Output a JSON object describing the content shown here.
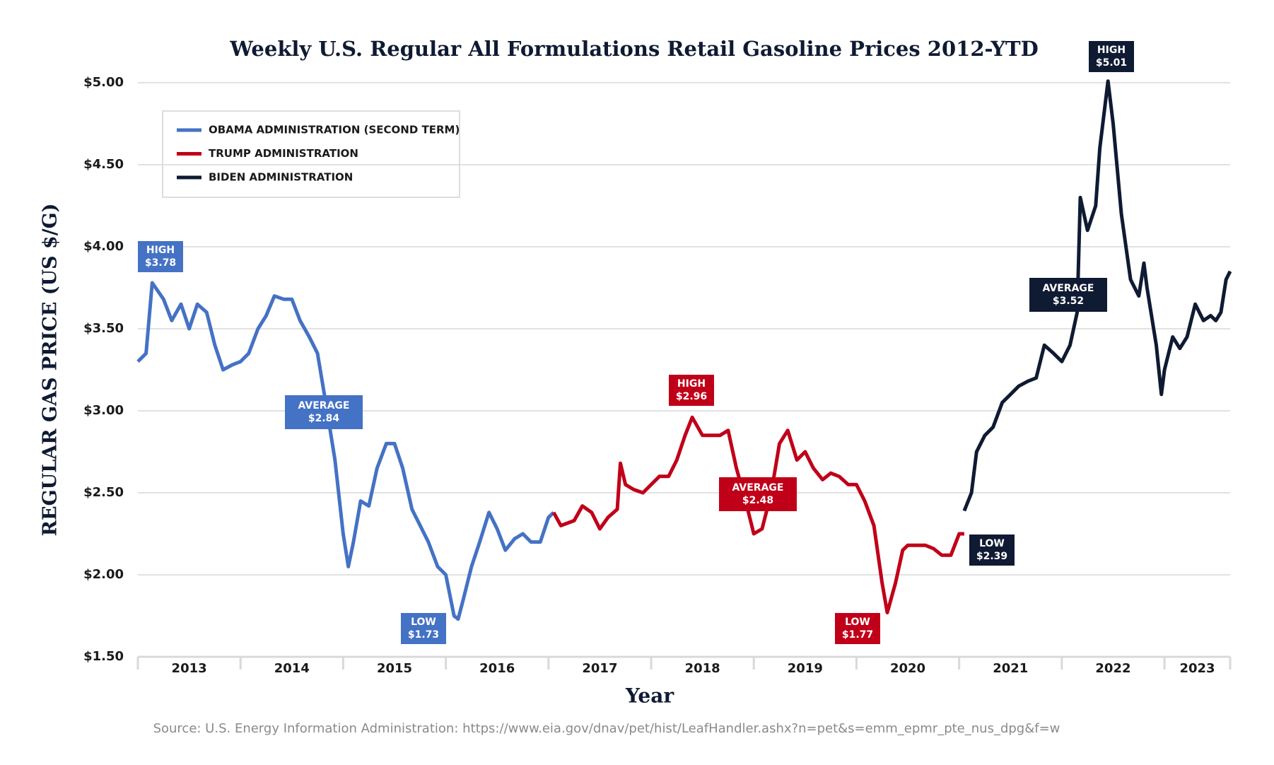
{
  "chart_data": {
    "type": "line",
    "title": "Weekly U.S. Regular All Formulations Retail Gasoline Prices 2012-YTD",
    "x_label": "Year",
    "y_label": "REGULAR GAS PRICE (US $/G)",
    "source": "Source: U.S. Energy Information Administration: https://www.eia.gov/dnav/pet/hist/LeafHandler.ashx?n=pet&s=emm_epmr_pte_nus_dpg&f=w",
    "xlim": [
      2013,
      2023.64
    ],
    "xticks": [
      2013,
      2014,
      2015,
      2016,
      2017,
      2018,
      2019,
      2020,
      2021,
      2022,
      2023
    ],
    "ylim": [
      1.5,
      5.0
    ],
    "yticks": [
      {
        "value": 1.5,
        "label": "$1.50"
      },
      {
        "value": 2.0,
        "label": "$2.00"
      },
      {
        "value": 2.5,
        "label": "$2.50"
      },
      {
        "value": 3.0,
        "label": "$3.00"
      },
      {
        "value": 3.5,
        "label": "$3.50"
      },
      {
        "value": 4.0,
        "label": "$4.00"
      },
      {
        "value": 4.5,
        "label": "$4.50"
      },
      {
        "value": 5.0,
        "label": "$5.00"
      }
    ],
    "grid": true,
    "legend": "upper left",
    "series": [
      {
        "name": "OBAMA ADMINISTRATION (SECOND TERM)",
        "color": "#4472c4",
        "x": [
          2013.0,
          2013.08,
          2013.14,
          2013.25,
          2013.33,
          2013.42,
          2013.5,
          2013.58,
          2013.67,
          2013.75,
          2013.83,
          2013.92,
          2014.0,
          2014.08,
          2014.17,
          2014.25,
          2014.33,
          2014.42,
          2014.5,
          2014.58,
          2014.67,
          2014.75,
          2014.83,
          2014.92,
          2015.0,
          2015.05,
          2015.1,
          2015.17,
          2015.25,
          2015.33,
          2015.42,
          2015.5,
          2015.58,
          2015.67,
          2015.75,
          2015.83,
          2015.92,
          2016.0,
          2016.08,
          2016.12,
          2016.17,
          2016.25,
          2016.33,
          2016.42,
          2016.5,
          2016.58,
          2016.67,
          2016.75,
          2016.83,
          2016.92,
          2017.0,
          2017.05
        ],
        "values": [
          3.3,
          3.35,
          3.78,
          3.68,
          3.55,
          3.65,
          3.5,
          3.65,
          3.6,
          3.4,
          3.25,
          3.28,
          3.3,
          3.35,
          3.5,
          3.58,
          3.7,
          3.68,
          3.68,
          3.55,
          3.45,
          3.35,
          3.05,
          2.7,
          2.25,
          2.05,
          2.2,
          2.45,
          2.42,
          2.65,
          2.8,
          2.8,
          2.65,
          2.4,
          2.3,
          2.2,
          2.05,
          2.0,
          1.75,
          1.73,
          1.85,
          2.05,
          2.2,
          2.38,
          2.28,
          2.15,
          2.22,
          2.25,
          2.2,
          2.2,
          2.35,
          2.38
        ]
      },
      {
        "name": "TRUMP ADMINISTRATION",
        "color": "#c00018",
        "x": [
          2017.05,
          2017.12,
          2017.25,
          2017.33,
          2017.42,
          2017.5,
          2017.58,
          2017.67,
          2017.7,
          2017.75,
          2017.83,
          2017.92,
          2018.0,
          2018.08,
          2018.17,
          2018.25,
          2018.33,
          2018.4,
          2018.5,
          2018.58,
          2018.67,
          2018.75,
          2018.83,
          2018.92,
          2019.0,
          2019.08,
          2019.17,
          2019.25,
          2019.33,
          2019.42,
          2019.5,
          2019.58,
          2019.67,
          2019.75,
          2019.83,
          2019.92,
          2020.0,
          2020.08,
          2020.17,
          2020.25,
          2020.3,
          2020.38,
          2020.45,
          2020.5,
          2020.58,
          2020.67,
          2020.75,
          2020.83,
          2020.92,
          2021.0,
          2021.05
        ],
        "values": [
          2.38,
          2.3,
          2.33,
          2.42,
          2.38,
          2.28,
          2.35,
          2.4,
          2.68,
          2.55,
          2.52,
          2.5,
          2.55,
          2.6,
          2.6,
          2.7,
          2.85,
          2.96,
          2.85,
          2.85,
          2.85,
          2.88,
          2.65,
          2.45,
          2.25,
          2.28,
          2.5,
          2.8,
          2.88,
          2.7,
          2.75,
          2.65,
          2.58,
          2.62,
          2.6,
          2.55,
          2.55,
          2.45,
          2.3,
          1.95,
          1.77,
          1.95,
          2.15,
          2.18,
          2.18,
          2.18,
          2.16,
          2.12,
          2.12,
          2.25,
          2.25
        ]
      },
      {
        "name": "BIDEN ADMINISTRATION",
        "color": "#0f1a33",
        "x": [
          2021.05,
          2021.12,
          2021.17,
          2021.25,
          2021.33,
          2021.42,
          2021.5,
          2021.58,
          2021.67,
          2021.75,
          2021.83,
          2021.92,
          2022.0,
          2022.08,
          2022.15,
          2022.18,
          2022.25,
          2022.33,
          2022.37,
          2022.45,
          2022.5,
          2022.58,
          2022.67,
          2022.75,
          2022.8,
          2022.83,
          2022.92,
          2022.97,
          2023.0,
          2023.08,
          2023.15,
          2023.22,
          2023.3,
          2023.38,
          2023.45,
          2023.5,
          2023.55,
          2023.6,
          2023.64
        ],
        "values": [
          2.39,
          2.5,
          2.75,
          2.85,
          2.9,
          3.05,
          3.1,
          3.15,
          3.18,
          3.2,
          3.4,
          3.35,
          3.3,
          3.4,
          3.6,
          4.3,
          4.1,
          4.25,
          4.6,
          5.01,
          4.75,
          4.2,
          3.8,
          3.7,
          3.9,
          3.75,
          3.4,
          3.1,
          3.25,
          3.45,
          3.38,
          3.45,
          3.65,
          3.55,
          3.58,
          3.55,
          3.6,
          3.8,
          3.85
        ]
      }
    ],
    "annotations": [
      {
        "series": 0,
        "label": "HIGH",
        "value": 3.78,
        "value_label": "$3.78"
      },
      {
        "series": 0,
        "label": "AVERAGE",
        "value": 2.84,
        "value_label": "$2.84"
      },
      {
        "series": 0,
        "label": "LOW",
        "value": 1.73,
        "value_label": "$1.73"
      },
      {
        "series": 1,
        "label": "HIGH",
        "value": 2.96,
        "value_label": "$2.96"
      },
      {
        "series": 1,
        "label": "AVERAGE",
        "value": 2.48,
        "value_label": "$2.48"
      },
      {
        "series": 1,
        "label": "LOW",
        "value": 1.77,
        "value_label": "$1.77"
      },
      {
        "series": 2,
        "label": "HIGH",
        "value": 5.01,
        "value_label": "$5.01"
      },
      {
        "series": 2,
        "label": "AVERAGE",
        "value": 3.52,
        "value_label": "$3.52"
      },
      {
        "series": 2,
        "label": "LOW",
        "value": 2.39,
        "value_label": "$2.39"
      }
    ]
  }
}
